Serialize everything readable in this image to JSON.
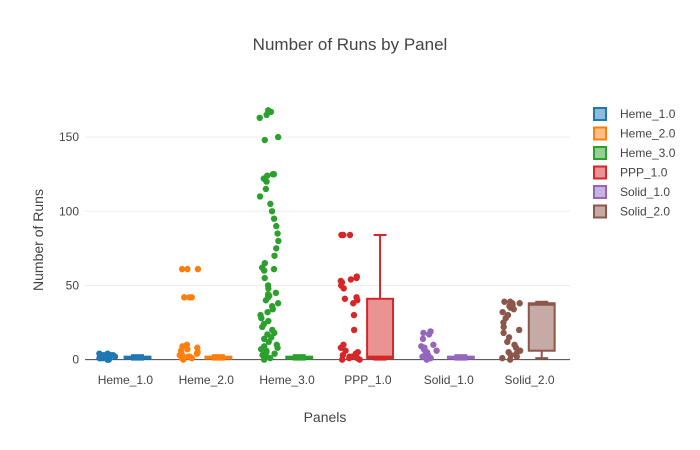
{
  "chart_data": {
    "type": "box",
    "title": "Number of Runs by Panel",
    "xlabel": "Panels",
    "ylabel": "Number of Runs",
    "ylim": [
      -7,
      175
    ],
    "yticks": [
      0,
      50,
      100,
      150
    ],
    "grid": true,
    "legend_position": "right",
    "categories": [
      "Heme_1.0",
      "Heme_2.0",
      "Heme_3.0",
      "PPP_1.0",
      "Solid_1.0",
      "Solid_2.0"
    ],
    "series": [
      {
        "name": "Heme_1.0",
        "color": "#1f77b4",
        "box": {
          "min": 0,
          "q1": 1,
          "median": 1,
          "q3": 2,
          "max": 3
        },
        "points": [
          0,
          0,
          1,
          1,
          1,
          1,
          1,
          2,
          2,
          2,
          3,
          3,
          3,
          4,
          4
        ]
      },
      {
        "name": "Heme_2.0",
        "color": "#ff7f0e",
        "box": {
          "min": 0,
          "q1": 1,
          "median": 1,
          "q3": 2,
          "max": 3
        },
        "points": [
          0,
          1,
          1,
          2,
          2,
          3,
          3,
          4,
          5,
          6,
          7,
          8,
          9,
          10,
          42,
          42,
          42,
          61,
          61,
          61
        ]
      },
      {
        "name": "Heme_3.0",
        "color": "#2ca02c",
        "box": {
          "min": 0,
          "q1": 1,
          "median": 1,
          "q3": 2,
          "max": 3
        },
        "points": [
          0,
          1,
          2,
          3,
          4,
          5,
          6,
          7,
          8,
          9,
          10,
          12,
          14,
          15,
          17,
          18,
          20,
          22,
          24,
          26,
          28,
          30,
          32,
          34,
          36,
          38,
          40,
          42,
          43,
          44,
          45,
          48,
          50,
          55,
          60,
          61,
          62,
          65,
          70,
          75,
          80,
          85,
          90,
          95,
          100,
          105,
          110,
          115,
          120,
          122,
          124,
          125,
          125,
          148,
          150,
          163,
          165,
          167,
          168
        ]
      },
      {
        "name": "PPP_1.0",
        "color": "#d62728",
        "box": {
          "min": 0,
          "q1": 1,
          "median": 2,
          "q3": 41,
          "max": 84
        },
        "points": [
          0,
          0,
          1,
          1,
          2,
          2,
          3,
          4,
          5,
          6,
          8,
          10,
          20,
          30,
          38,
          40,
          41,
          42,
          48,
          50,
          52,
          53,
          54,
          55,
          56,
          84,
          84,
          84
        ]
      },
      {
        "name": "Solid_1.0",
        "color": "#9467bd",
        "box": {
          "min": 0,
          "q1": 1,
          "median": 1,
          "q3": 2,
          "max": 3
        },
        "points": [
          0,
          1,
          2,
          3,
          4,
          5,
          6,
          7,
          8,
          9,
          10,
          14,
          17,
          18,
          19
        ]
      },
      {
        "name": "Solid_2.0",
        "color": "#8c564b",
        "box": {
          "min": 1,
          "q1": 6,
          "median": 37,
          "q3": 38,
          "max": 39
        },
        "points": [
          0,
          1,
          2,
          3,
          4,
          5,
          6,
          8,
          10,
          12,
          15,
          18,
          20,
          22,
          25,
          28,
          30,
          32,
          34,
          35,
          36,
          37,
          38,
          38,
          39,
          39
        ]
      }
    ]
  }
}
